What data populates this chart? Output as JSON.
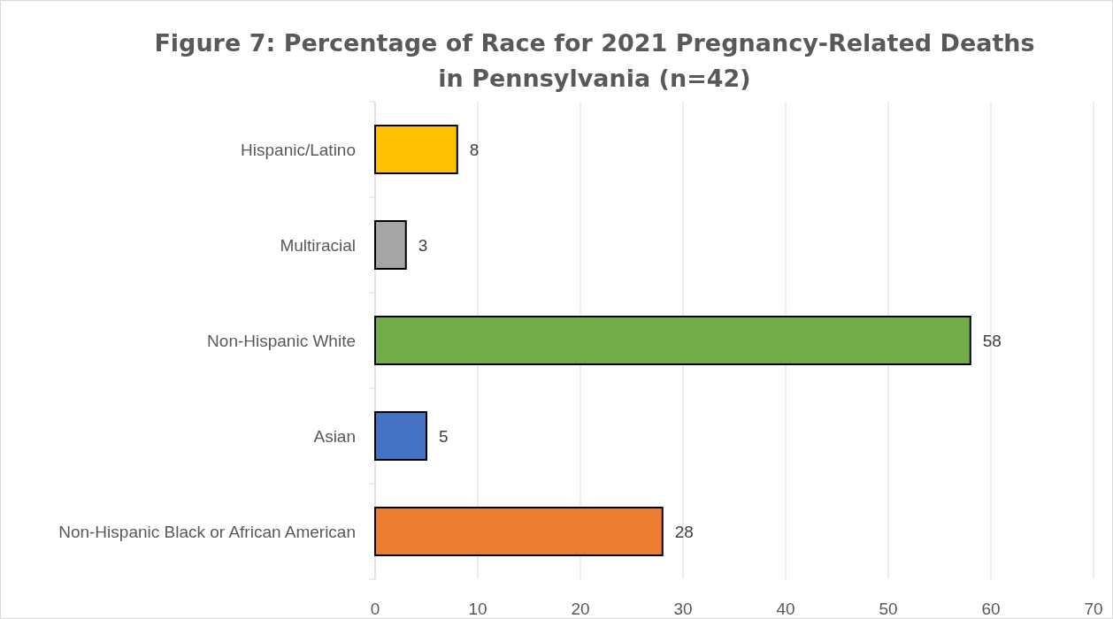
{
  "chart_data": {
    "type": "bar",
    "orientation": "horizontal",
    "title": "Figure 7: Percentage of Race for 2021 Pregnancy-Related Deaths in Pennsylvania (n=42)",
    "categories": [
      "Hispanic/Latino",
      "Multiracial",
      "Non-Hispanic White",
      "Asian",
      "Non-Hispanic Black or African American"
    ],
    "values": [
      8,
      3,
      58,
      5,
      28
    ],
    "colors": [
      "#ffc000",
      "#a5a5a5",
      "#70ad47",
      "#4472c4",
      "#ed7d31"
    ],
    "xlim": [
      0,
      70
    ],
    "xticks": [
      0,
      10,
      20,
      30,
      40,
      50,
      60,
      70
    ],
    "grid": "x",
    "data_labels": true
  }
}
